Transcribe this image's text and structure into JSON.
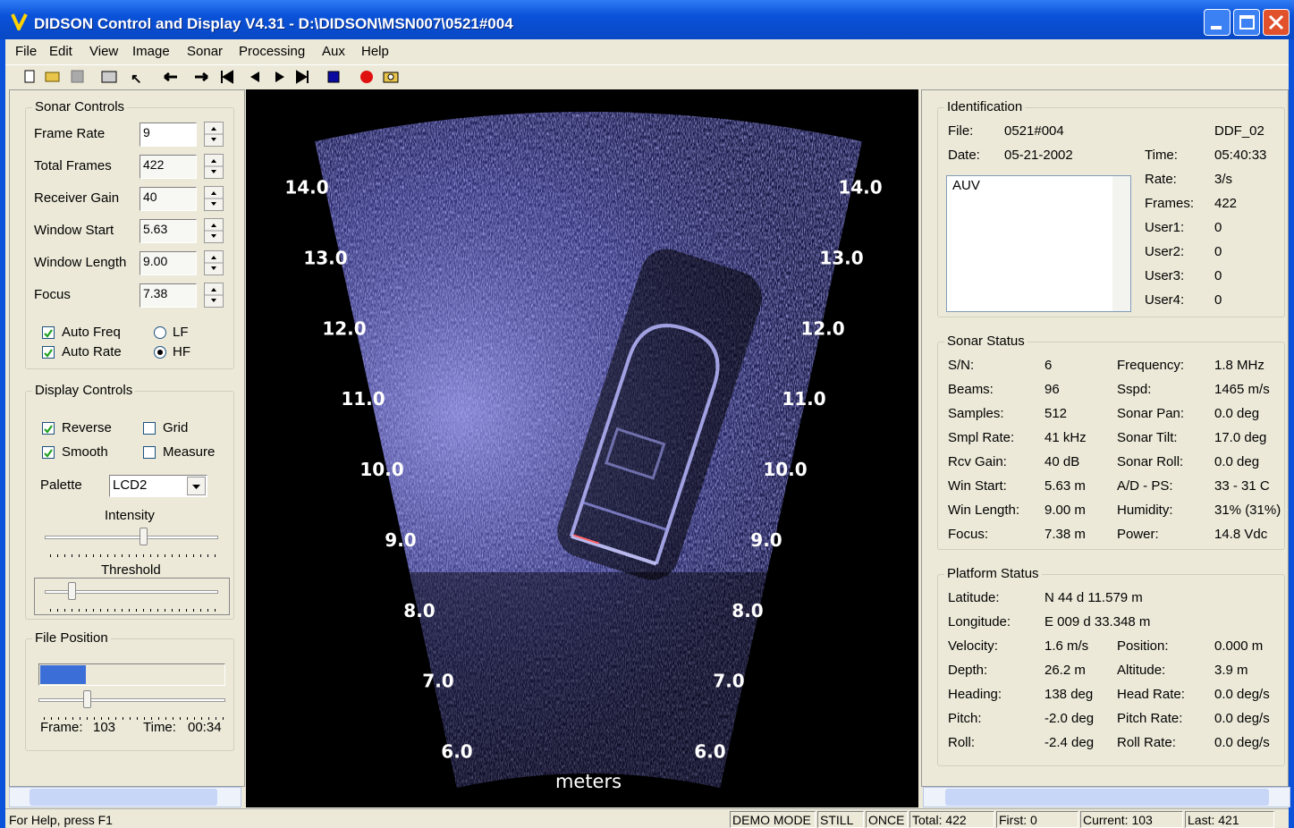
{
  "window": {
    "title": "DIDSON Control and Display   V4.31 - D:\\DIDSON\\MSN007\\0521#004"
  },
  "menu": [
    "File",
    "Edit",
    "View",
    "Image",
    "Sonar",
    "Processing",
    "Aux",
    "Help"
  ],
  "sonar_controls": {
    "title": "Sonar Controls",
    "fields": [
      {
        "label": "Frame Rate",
        "value": "9"
      },
      {
        "label": "Total Frames",
        "value": "422"
      },
      {
        "label": "Receiver Gain",
        "value": "40"
      },
      {
        "label": "Window Start",
        "value": "5.63"
      },
      {
        "label": "Window Length",
        "value": "9.00"
      },
      {
        "label": "Focus",
        "value": "7.38"
      }
    ],
    "checkboxes": [
      {
        "label": "Auto Freq",
        "checked": true
      },
      {
        "label": "Auto Rate",
        "checked": true
      }
    ],
    "radios": [
      {
        "label": "LF",
        "selected": false
      },
      {
        "label": "HF",
        "selected": true
      }
    ]
  },
  "display_controls": {
    "title": "Display Controls",
    "checkboxes": [
      {
        "label": "Reverse",
        "checked": true
      },
      {
        "label": "Grid",
        "checked": false
      },
      {
        "label": "Smooth",
        "checked": true
      },
      {
        "label": "Measure",
        "checked": false
      }
    ],
    "palette_label": "Palette",
    "palette": "LCD2",
    "intensity_label": "Intensity",
    "threshold_label": "Threshold"
  },
  "file_position": {
    "title": "File Position",
    "frame_label": "Frame:",
    "frame": "103",
    "time_label": "Time:",
    "time": "00:34"
  },
  "sonar_image": {
    "range_labels": [
      "14.0",
      "13.0",
      "12.0",
      "11.0",
      "10.0",
      "9.0",
      "8.0",
      "7.0",
      "6.0"
    ],
    "axis_label": "meters"
  },
  "identification": {
    "title": "Identification",
    "file_label": "File:",
    "file": "0521#004",
    "format": "DDF_02",
    "date_label": "Date:",
    "date": "05-21-2002",
    "notes": "AUV",
    "fields": [
      {
        "label": "Time:",
        "value": "05:40:33"
      },
      {
        "label": "Rate:",
        "value": "3/s"
      },
      {
        "label": "Frames:",
        "value": "422"
      },
      {
        "label": "User1:",
        "value": "0"
      },
      {
        "label": "User2:",
        "value": "0"
      },
      {
        "label": "User3:",
        "value": "0"
      },
      {
        "label": "User4:",
        "value": "0"
      }
    ]
  },
  "sonar_status": {
    "title": "Sonar Status",
    "rows": [
      [
        "S/N:",
        "6",
        "Frequency:",
        "1.8 MHz"
      ],
      [
        "Beams:",
        "96",
        "Sspd:",
        "1465 m/s"
      ],
      [
        "Samples:",
        "512",
        "Sonar Pan:",
        "0.0 deg"
      ],
      [
        "Smpl Rate:",
        "41 kHz",
        "Sonar Tilt:",
        "17.0 deg"
      ],
      [
        "Rcv Gain:",
        "40 dB",
        "Sonar Roll:",
        "0.0 deg"
      ],
      [
        "Win Start:",
        "5.63 m",
        "A/D - PS:",
        "33 - 31 C"
      ],
      [
        "Win Length:",
        "9.00 m",
        "Humidity:",
        "31% (31%)"
      ],
      [
        "Focus:",
        "7.38 m",
        "Power:",
        "14.8 Vdc"
      ]
    ]
  },
  "platform_status": {
    "title": "Platform Status",
    "rows": [
      [
        "Latitude:",
        "N  44 d 11.579 m"
      ],
      [
        "Longitude:",
        "E 009 d 33.348 m"
      ],
      [
        "Velocity:",
        "1.6 m/s",
        "Position:",
        "0.000 m"
      ],
      [
        "Depth:",
        "26.2 m",
        "Altitude:",
        "3.9 m"
      ],
      [
        "Heading:",
        "138 deg",
        "Head Rate:",
        "0.0 deg/s"
      ],
      [
        "Pitch:",
        "-2.0 deg",
        "Pitch Rate:",
        "0.0 deg/s"
      ],
      [
        "Roll:",
        "-2.4 deg",
        "Roll Rate:",
        "0.0 deg/s"
      ]
    ]
  },
  "status_bar": {
    "help": "For Help, press F1",
    "fields": [
      "DEMO MODE",
      "STILL",
      "ONCE",
      "Total: 422",
      "First: 0",
      "Current: 103",
      "Last: 421"
    ]
  }
}
